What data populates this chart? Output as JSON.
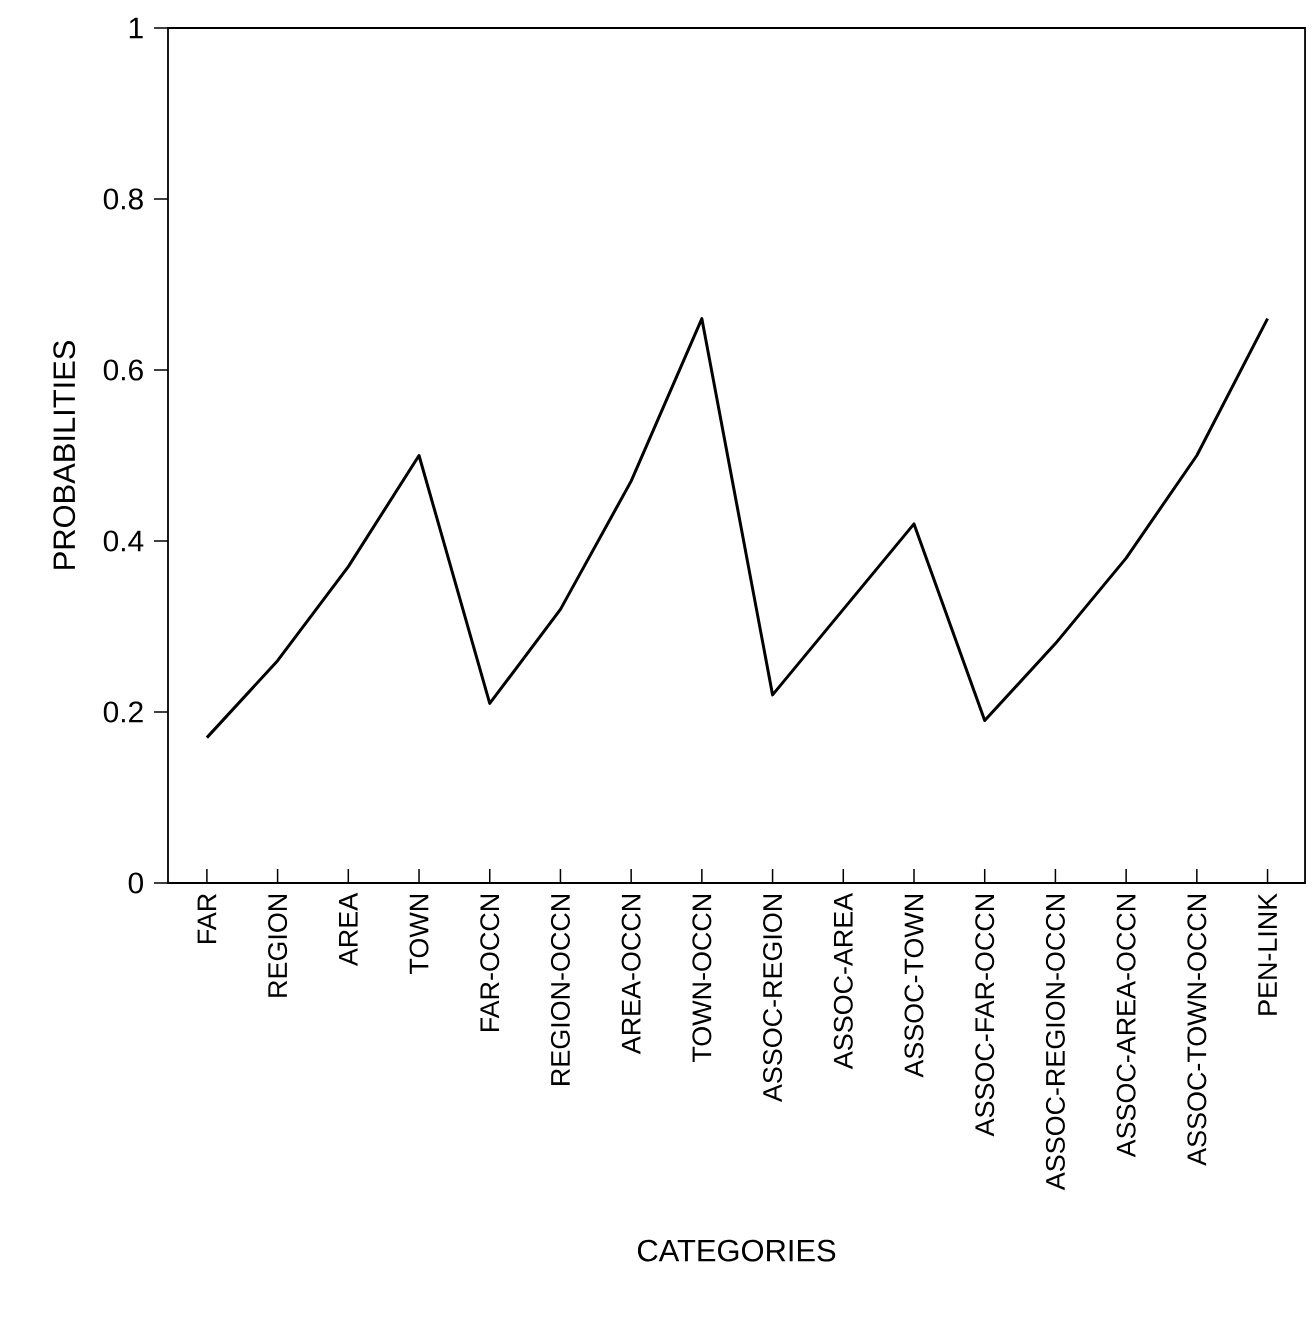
{
  "chart_data": {
    "type": "line",
    "xlabel": "CATEGORIES",
    "ylabel": "PROBABILITIES",
    "categories": [
      "FAR",
      "REGION",
      "AREA",
      "TOWN",
      "FAR-OCCN",
      "REGION-OCCN",
      "AREA-OCCN",
      "TOWN-OCCN",
      "ASSOC-REGION",
      "ASSOC-AREA",
      "ASSOC-TOWN",
      "ASSOC-FAR-OCCN",
      "ASSOC-REGION-OCCN",
      "ASSOC-AREA-OCCN",
      "ASSOC-TOWN-OCCN",
      "PEN-LINK"
    ],
    "values": [
      0.17,
      0.26,
      0.37,
      0.5,
      0.21,
      0.32,
      0.47,
      0.66,
      0.22,
      0.32,
      0.42,
      0.19,
      0.28,
      0.38,
      0.5,
      0.66
    ],
    "color": "#000000",
    "line_style": "solid",
    "grid": false,
    "ylim": [
      0,
      1
    ],
    "yticks": [
      0,
      0.2,
      0.4,
      0.6,
      0.8,
      1
    ]
  }
}
